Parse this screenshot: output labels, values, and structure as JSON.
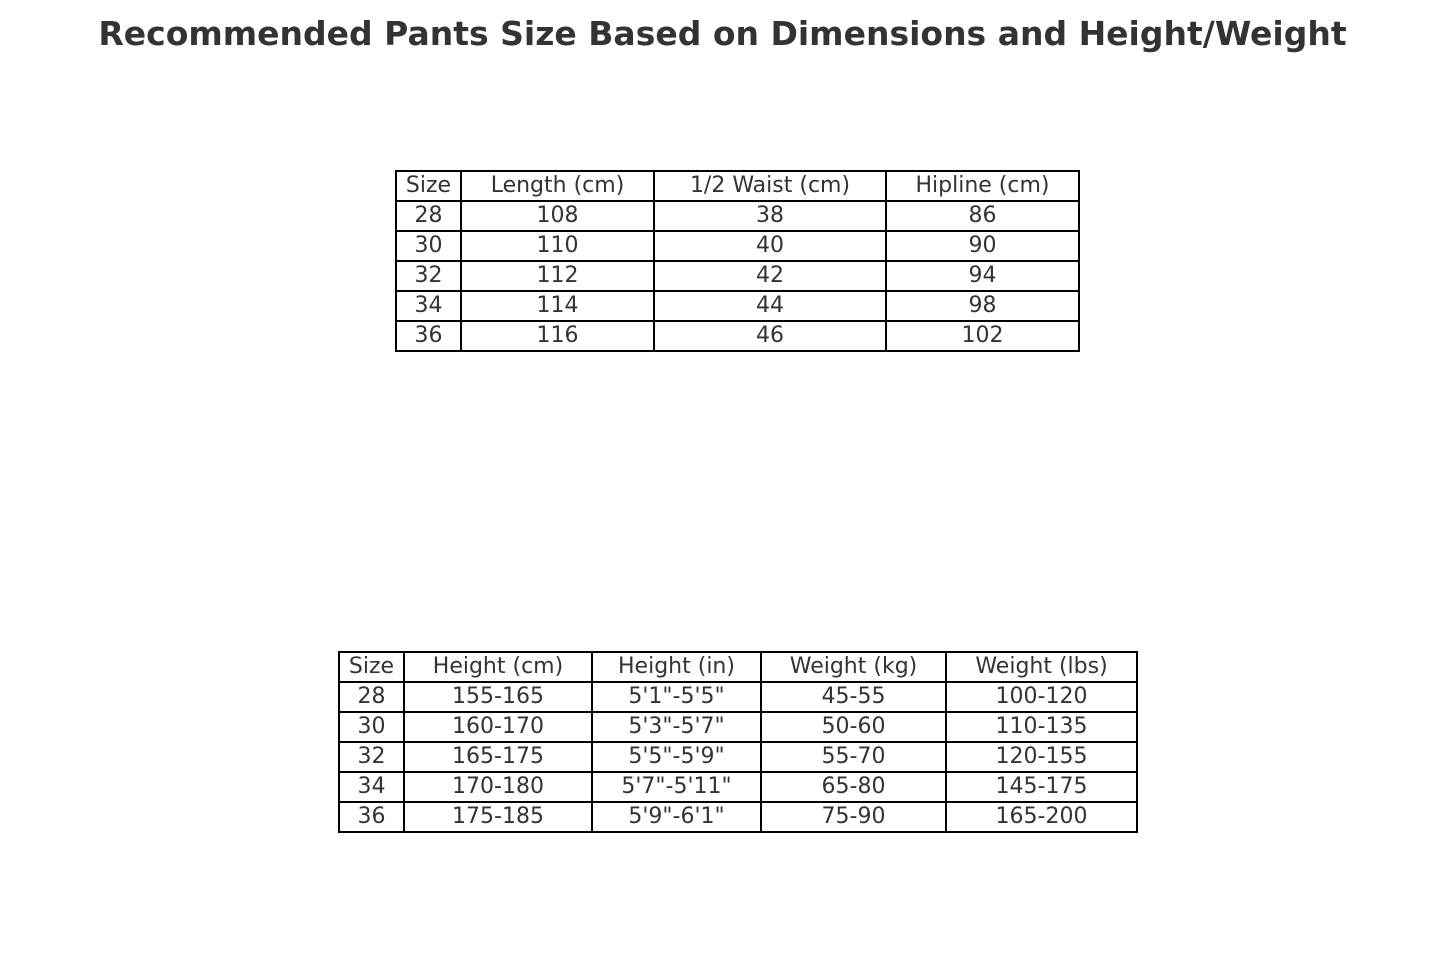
{
  "chart_data": [
    {
      "type": "table",
      "title": "Recommended Pants Size Based on Dimensions and Height/Weight",
      "columns": [
        "Size",
        "Length (cm)",
        "1/2 Waist (cm)",
        "Hipline (cm)"
      ],
      "rows": [
        [
          "28",
          "108",
          "38",
          "86"
        ],
        [
          "30",
          "110",
          "40",
          "90"
        ],
        [
          "32",
          "112",
          "42",
          "94"
        ],
        [
          "34",
          "114",
          "44",
          "98"
        ],
        [
          "36",
          "116",
          "46",
          "102"
        ]
      ]
    },
    {
      "type": "table",
      "columns": [
        "Size",
        "Height (cm)",
        "Height (in)",
        "Weight (kg)",
        "Weight (lbs)"
      ],
      "rows": [
        [
          "28",
          "155-165",
          "5'1\"-5'5\"",
          "45-55",
          "100-120"
        ],
        [
          "30",
          "160-170",
          "5'3\"-5'7\"",
          "50-60",
          "110-135"
        ],
        [
          "32",
          "165-175",
          "5'5\"-5'9\"",
          "55-70",
          "120-155"
        ],
        [
          "34",
          "170-180",
          "5'7\"-5'11\"",
          "65-80",
          "145-175"
        ],
        [
          "36",
          "175-185",
          "5'9\"-6'1\"",
          "75-90",
          "165-200"
        ]
      ]
    }
  ]
}
